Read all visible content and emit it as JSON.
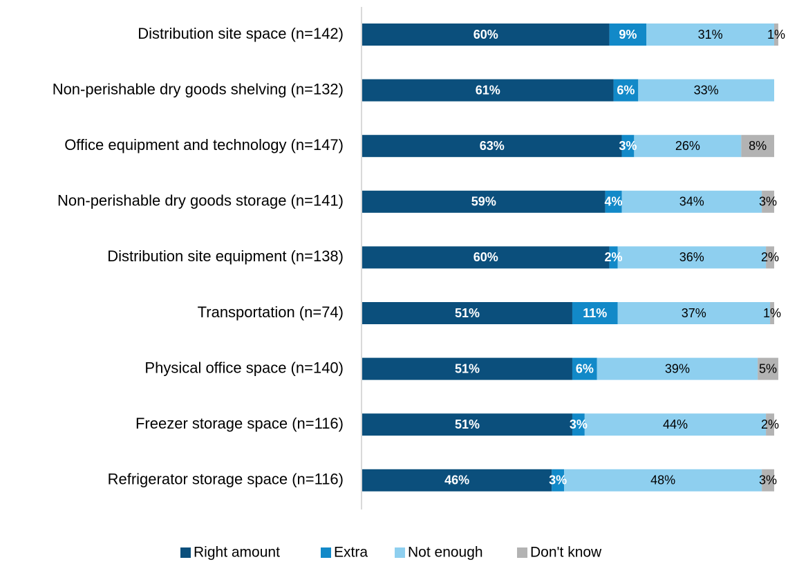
{
  "chart_data": {
    "type": "bar",
    "orientation": "horizontal",
    "stacked": true,
    "categories": [
      "Distribution site space (n=142)",
      "Non-perishable dry goods shelving (n=132)",
      "Office equipment and technology (n=147)",
      "Non-perishable dry goods storage (n=141)",
      "Distribution site equipment (n=138)",
      "Transportation (n=74)",
      "Physical office space (n=140)",
      "Freezer storage space (n=116)",
      "Refrigerator storage space (n=116)"
    ],
    "series": [
      {
        "name": "Right amount",
        "color": "#0b4f7c",
        "values": [
          60,
          61,
          63,
          59,
          60,
          51,
          51,
          51,
          46
        ],
        "labels": [
          "60%",
          "61%",
          "63%",
          "59%",
          "60%",
          "51%",
          "51%",
          "51%",
          "46%"
        ],
        "label_color": "#ffffff",
        "label_bold": true
      },
      {
        "name": "Extra",
        "color": "#1289c8",
        "values": [
          9,
          6,
          3,
          4,
          2,
          11,
          6,
          3,
          3
        ],
        "labels": [
          "9%",
          "6%",
          "3%",
          "4%",
          "2%",
          "11%",
          "6%",
          "3%",
          "3%"
        ],
        "label_color": "#ffffff",
        "label_bold": true
      },
      {
        "name": "Not enough",
        "color": "#8ecfef",
        "values": [
          31,
          33,
          26,
          34,
          36,
          37,
          39,
          44,
          48
        ],
        "labels": [
          "31%",
          "33%",
          "26%",
          "34%",
          "36%",
          "37%",
          "39%",
          "44%",
          "48%"
        ],
        "label_color": "#000000",
        "label_bold": false
      },
      {
        "name": "Don't know",
        "color": "#b3b3b3",
        "values": [
          1,
          0,
          8,
          3,
          2,
          1,
          5,
          2,
          3
        ],
        "labels": [
          "1%",
          "",
          "8%",
          "3%",
          "2%",
          "1%",
          "5%",
          "2%",
          "3%"
        ],
        "label_color": "#000000",
        "label_bold": false
      }
    ],
    "xlim": [
      0,
      100
    ],
    "grid": false,
    "legend_position": "bottom"
  }
}
